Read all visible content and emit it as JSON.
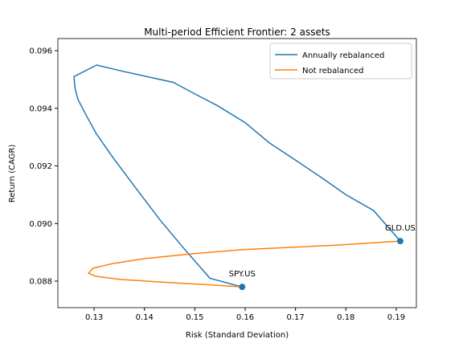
{
  "chart_data": {
    "type": "line",
    "title": "Multi-period Efficient Frontier: 2 assets",
    "xlabel": "Risk (Standard Deviation)",
    "ylabel": "Return (CAGR)",
    "xlim": [
      0.1228,
      0.194
    ],
    "ylim": [
      0.08708,
      0.09642
    ],
    "xticks": [
      0.13,
      0.14,
      0.15,
      0.16,
      0.17,
      0.18,
      0.19
    ],
    "yticks": [
      0.088,
      {
        "value": 0.09,
        "label": "0.090"
      },
      0.092,
      0.094,
      0.096
    ],
    "legend": "upper right",
    "series": [
      {
        "name": "Annually rebalanced",
        "color": "#1f77b4",
        "x": [
          0.1908,
          0.1855,
          0.18,
          0.1751,
          0.17,
          0.1648,
          0.16,
          0.1544,
          0.15,
          0.1457,
          0.1405,
          0.1353,
          0.1305,
          0.126,
          0.1262,
          0.1268,
          0.1286,
          0.1305,
          0.1337,
          0.1384,
          0.1432,
          0.148,
          0.153,
          0.1594
        ],
        "values": [
          0.08939,
          0.09045,
          0.091,
          0.0916,
          0.0922,
          0.0928,
          0.0935,
          0.0941,
          0.0945,
          0.0949,
          0.0951,
          0.0953,
          0.0955,
          0.0951,
          0.0947,
          0.0943,
          0.0937,
          0.0931,
          0.0923,
          0.0912,
          0.0901,
          0.0891,
          0.0881,
          0.0878
        ]
      },
      {
        "name": "Not rebalanced",
        "color": "#ff7f0e",
        "x": [
          0.1594,
          0.1511,
          0.1432,
          0.1352,
          0.1302,
          0.1289,
          0.1298,
          0.1337,
          0.14,
          0.1496,
          0.1592,
          0.1688,
          0.1783,
          0.1908
        ],
        "values": [
          0.0878,
          0.08789,
          0.08797,
          0.08806,
          0.08817,
          0.08828,
          0.08845,
          0.08861,
          0.08878,
          0.08895,
          0.08909,
          0.08917,
          0.08925,
          0.08939
        ]
      }
    ],
    "annotations": [
      {
        "text": "SPY.US",
        "x": 0.1594,
        "y": 0.0878,
        "color": "#1f77b4"
      },
      {
        "text": "GLD.US",
        "x": 0.1908,
        "y": 0.08939,
        "color": "#1f77b4"
      }
    ]
  }
}
